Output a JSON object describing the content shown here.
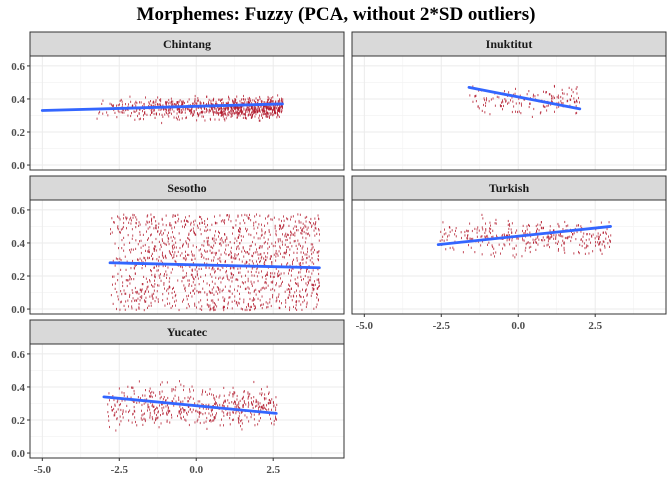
{
  "title": "Morphemes: Fuzzy (PCA, without 2*SD outliers)",
  "colors": {
    "point": "#b2182b",
    "trend": "#3366ff",
    "strip": "#d9d9d9",
    "grid": "#ebebeb",
    "panel_border": "#333333"
  },
  "chart_data": {
    "type": "scatter",
    "title": "Morphemes: Fuzzy (PCA, without 2*SD outliers)",
    "xlabel": "",
    "ylabel": "",
    "xlim": [
      -5.4,
      4.8
    ],
    "ylim": [
      -0.03,
      0.66
    ],
    "x_ticks": [
      -5.0,
      -2.5,
      0.0,
      2.5
    ],
    "x_tick_labels": [
      "-5.0",
      "-2.5",
      "0.0",
      "2.5"
    ],
    "y_ticks": [
      0.0,
      0.2,
      0.4,
      0.6
    ],
    "y_tick_labels": [
      "0.0",
      "0.2",
      "0.4",
      "0.6"
    ],
    "grid": true,
    "trend_line": "linear fit",
    "panels": [
      {
        "name": "Chintang",
        "x_range": [
          -5.0,
          2.8
        ],
        "y_center": 0.35,
        "y_spread": 0.06,
        "density": 900,
        "trend": {
          "x": [
            -5.0,
            2.8
          ],
          "y": [
            0.33,
            0.37
          ]
        }
      },
      {
        "name": "Inuktitut",
        "x_range": [
          -1.6,
          2.0
        ],
        "y_center": 0.4,
        "y_spread": 0.08,
        "density": 160,
        "trend": {
          "x": [
            -1.6,
            2.0
          ],
          "y": [
            0.47,
            0.34
          ]
        }
      },
      {
        "name": "Sesotho",
        "x_range": [
          -2.8,
          4.0
        ],
        "y_center": 0.27,
        "y_spread": 0.3,
        "density": 1400,
        "trend": {
          "x": [
            -2.8,
            4.0
          ],
          "y": [
            0.28,
            0.25
          ]
        }
      },
      {
        "name": "Turkish",
        "x_range": [
          -2.6,
          3.0
        ],
        "y_center": 0.44,
        "y_spread": 0.1,
        "density": 350,
        "trend": {
          "x": [
            -2.6,
            3.0
          ],
          "y": [
            0.39,
            0.5
          ]
        }
      },
      {
        "name": "Yucatec",
        "x_range": [
          -2.9,
          2.6
        ],
        "y_center": 0.29,
        "y_spread": 0.12,
        "density": 500,
        "trend": {
          "x": [
            -3.0,
            2.6
          ],
          "y": [
            0.34,
            0.24
          ]
        }
      }
    ]
  }
}
